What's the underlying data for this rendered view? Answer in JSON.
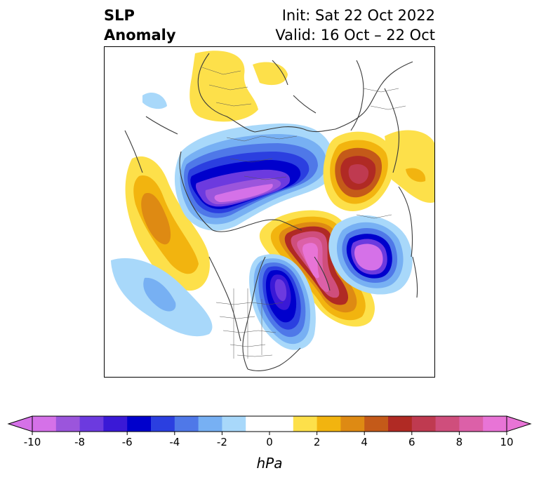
{
  "title": {
    "left_line1": "SLP",
    "left_line2": "Anomaly",
    "right_line1": "Init: Sat 22 Oct 2022",
    "right_line2": "Valid: 16 Oct – 22 Oct"
  },
  "colorbar": {
    "unit": "hPa",
    "tick_labels": [
      "-10",
      "-8",
      "-6",
      "-4",
      "-2",
      "0",
      "2",
      "4",
      "6",
      "8",
      "10"
    ],
    "levels": [
      -10,
      -9,
      -8,
      -7,
      -6,
      -5,
      -4,
      -3,
      -2,
      -1,
      1,
      2,
      3,
      4,
      5,
      6,
      7,
      8,
      9,
      10
    ],
    "colors": [
      "#d571e8",
      "#9b55dc",
      "#6c3adf",
      "#3a19d6",
      "#0000cc",
      "#2b3fe0",
      "#4f78e8",
      "#77b0f3",
      "#a8d8fa",
      "#ffffff",
      "#fde04a",
      "#f2b40f",
      "#de8a13",
      "#c45a19",
      "#b02a24",
      "#bf3a50",
      "#cf4e7c",
      "#dc60a8",
      "#e874d6"
    ],
    "extend": "both"
  },
  "colors": {
    "border": "#000000",
    "coastline": "#3a3a3a",
    "background": "#ffffff"
  }
}
